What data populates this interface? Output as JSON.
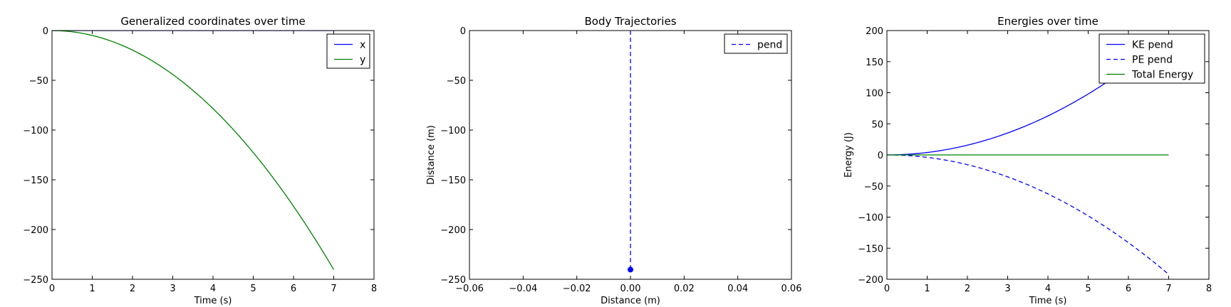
{
  "chart_data": [
    {
      "type": "line",
      "title": "Generalized coordinates over time",
      "xlabel": "Time (s)",
      "ylabel": "",
      "xlim": [
        0,
        8
      ],
      "ylim": [
        -250,
        0
      ],
      "xticks": [
        0,
        1,
        2,
        3,
        4,
        5,
        6,
        7,
        8
      ],
      "yticks": [
        0,
        -50,
        -100,
        -150,
        -200,
        -250
      ],
      "xtick_labels": [
        "0",
        "1",
        "2",
        "3",
        "4",
        "5",
        "6",
        "7",
        "8"
      ],
      "ytick_labels": [
        "0",
        "−50",
        "−100",
        "−150",
        "−200",
        "−250"
      ],
      "legend_position": "top-right",
      "series": [
        {
          "name": "x",
          "color": "#0000ff",
          "style": "solid",
          "kind": "quadratic",
          "t_end": 7,
          "a": 0
        },
        {
          "name": "y",
          "color": "#008000",
          "style": "solid",
          "kind": "quadratic",
          "t_end": 7,
          "a": -4.905
        }
      ]
    },
    {
      "type": "line",
      "title": "Body Trajectories",
      "xlabel": "Distance (m)",
      "ylabel": "Distance (m)",
      "xlim": [
        -0.06,
        0.06
      ],
      "ylim": [
        -250,
        0
      ],
      "xticks": [
        -0.06,
        -0.04,
        -0.02,
        0.0,
        0.02,
        0.04,
        0.06
      ],
      "yticks": [
        0,
        -50,
        -100,
        -150,
        -200,
        -250
      ],
      "xtick_labels": [
        "−0.06",
        "−0.04",
        "−0.02",
        "0.00",
        "0.02",
        "0.04",
        "0.06"
      ],
      "ytick_labels": [
        "0",
        "−50",
        "−100",
        "−150",
        "−200",
        "−250"
      ],
      "legend_position": "top-right",
      "series": [
        {
          "name": "pend",
          "color": "#0000ff",
          "style": "dashed",
          "kind": "points",
          "x": [
            0,
            0
          ],
          "y": [
            0,
            -240.3
          ],
          "end_marker": true
        }
      ]
    },
    {
      "type": "line",
      "title": "Energies over time",
      "xlabel": "Time (s)",
      "ylabel": "Energy (J)",
      "xlim": [
        0,
        8
      ],
      "ylim": [
        -200,
        200
      ],
      "xticks": [
        0,
        1,
        2,
        3,
        4,
        5,
        6,
        7,
        8
      ],
      "yticks": [
        200,
        150,
        100,
        50,
        0,
        -50,
        -100,
        -150,
        -200
      ],
      "xtick_labels": [
        "0",
        "1",
        "2",
        "3",
        "4",
        "5",
        "6",
        "7",
        "8"
      ],
      "ytick_labels": [
        "200",
        "150",
        "100",
        "50",
        "0",
        "−50",
        "−100",
        "−150",
        "−200"
      ],
      "legend_position": "top-right",
      "series": [
        {
          "name": "KE pend",
          "color": "#0000ff",
          "style": "solid",
          "kind": "quadratic",
          "t_end": 7,
          "a": 3.92
        },
        {
          "name": "PE pend",
          "color": "#0000ff",
          "style": "dashed",
          "kind": "quadratic",
          "t_end": 7,
          "a": -3.92
        },
        {
          "name": "Total Energy",
          "color": "#008000",
          "style": "solid",
          "kind": "quadratic",
          "t_end": 7,
          "a": 0
        }
      ]
    }
  ]
}
